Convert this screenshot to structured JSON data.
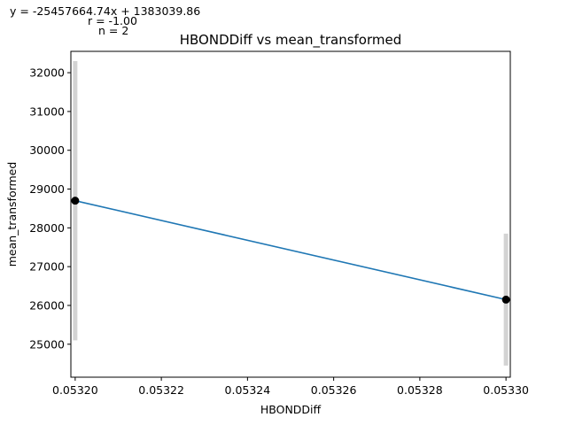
{
  "annotations": {
    "equation": "y = -25457664.74x + 1383039.86",
    "r": "r = -1.00",
    "n": "n = 2"
  },
  "chart_data": {
    "type": "line",
    "title": "HBONDDiff vs mean_transformed",
    "xlabel": "HBONDDiff",
    "ylabel": "mean_transformed",
    "xlim": [
      0.053199,
      0.053301
    ],
    "ylim": [
      24150,
      32550
    ],
    "xticks": [
      0.0532,
      0.05322,
      0.05324,
      0.05326,
      0.05328,
      0.0533
    ],
    "xtick_labels": [
      "0.05320",
      "0.05322",
      "0.05324",
      "0.05326",
      "0.05328",
      "0.05330"
    ],
    "yticks": [
      25000,
      26000,
      27000,
      28000,
      29000,
      30000,
      31000,
      32000
    ],
    "ytick_labels": [
      "25000",
      "26000",
      "27000",
      "28000",
      "29000",
      "30000",
      "31000",
      "32000"
    ],
    "grid": false,
    "points": [
      {
        "x": 0.0532,
        "y": 28700,
        "err_low": 25100,
        "err_high": 32300
      },
      {
        "x": 0.0533,
        "y": 26150,
        "err_low": 24450,
        "err_high": 27850
      }
    ],
    "fit_line": {
      "x": [
        0.0532,
        0.0533
      ],
      "y": [
        28700,
        26150
      ]
    },
    "colors": {
      "line": "#1f77b4",
      "marker": "#000000",
      "errorbar": "#d3d3d3"
    }
  }
}
